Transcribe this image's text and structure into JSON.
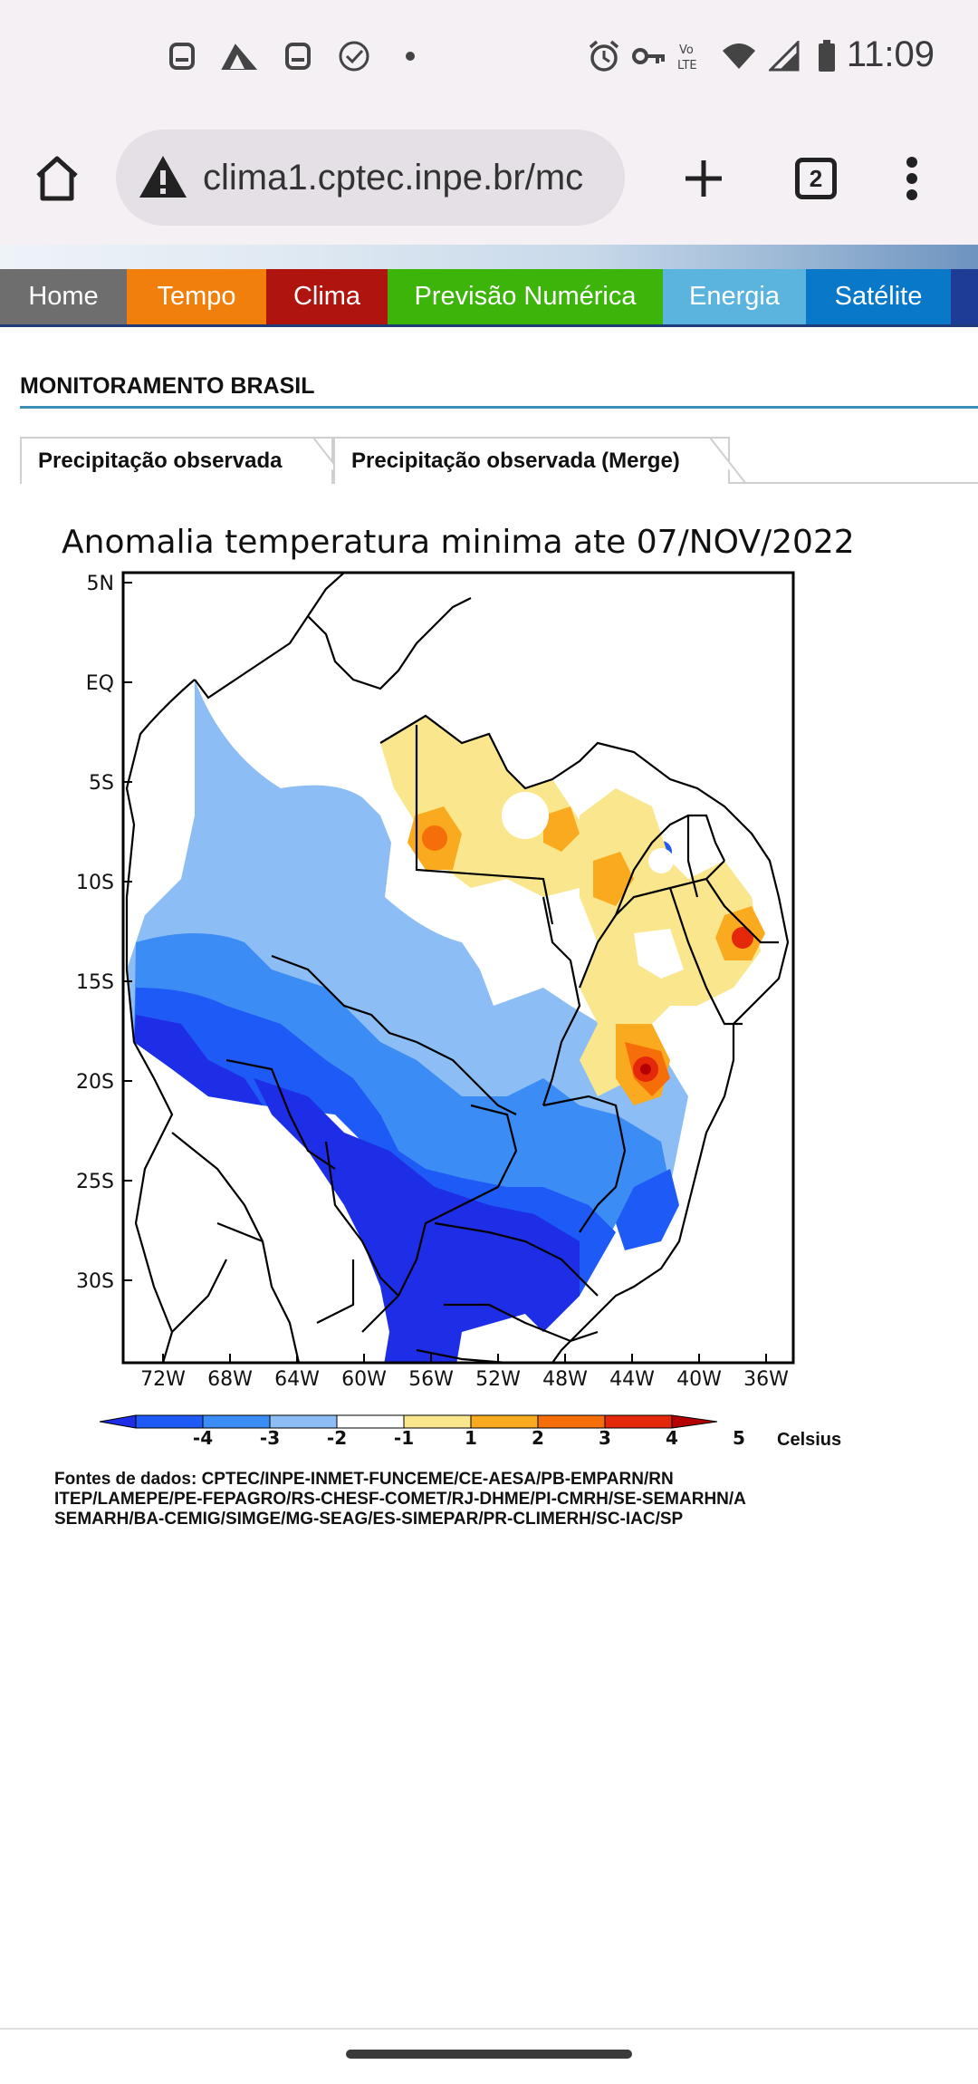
{
  "status_bar": {
    "time": "11:09",
    "left_icons": [
      "notification-icon",
      "app-icon",
      "notification-icon",
      "check-circle-icon",
      "dot-icon"
    ],
    "right_icons": [
      "alarm-icon",
      "key-icon",
      "volte-icon",
      "wifi-icon",
      "signal-icon",
      "battery-icon"
    ]
  },
  "browser": {
    "url": "clima1.cptec.inpe.br/mc",
    "tab_count": "2"
  },
  "nav": {
    "items": [
      {
        "label": "Home",
        "color": "#6e6e6e"
      },
      {
        "label": "Tempo",
        "color": "#f07f0c"
      },
      {
        "label": "Clima",
        "color": "#b0140f"
      },
      {
        "label": "Previsão Numérica",
        "color": "#3cb40a"
      },
      {
        "label": "Energia",
        "color": "#5ab4de"
      },
      {
        "label": "Satélite",
        "color": "#0a78c8"
      }
    ]
  },
  "page": {
    "section_title": "MONITORAMENTO BRASIL",
    "tabs": [
      {
        "label": "Precipitação observada"
      },
      {
        "label": "Precipitação observada (Merge)"
      }
    ]
  },
  "figure": {
    "title": "Anomalia temperatura minima ate 07/NOV/2022",
    "y_ticks": [
      "5N",
      "EQ",
      "5S",
      "10S",
      "15S",
      "20S",
      "25S",
      "30S"
    ],
    "x_ticks": [
      "72W",
      "68W",
      "64W",
      "60W",
      "56W",
      "52W",
      "48W",
      "44W",
      "40W",
      "36W"
    ],
    "colorbar": {
      "labels": [
        "-4",
        "-3",
        "-2",
        "-1",
        "1",
        "2",
        "3",
        "4",
        "5"
      ],
      "colors": [
        "#1e2de6",
        "#1e5af5",
        "#3c8cf5",
        "#8cbef5",
        "#ffffff",
        "#fae68c",
        "#faaa1e",
        "#f56e0a",
        "#e6280a",
        "#b40000"
      ],
      "unit": "Celsius"
    },
    "source_lines": [
      "Fontes de dados: CPTEC/INPE-INMET-FUNCEME/CE-AESA/PB-EMPARN/RN",
      "ITEP/LAMEPE/PE-FEPAGRO/RS-CHESF-COMET/RJ-DHME/PI-CMRH/SE-SEMARHN/A",
      "SEMARH/BA-CEMIG/SIMGE/MG-SEAG/ES-SIMEPAR/PR-CLIMERH/SC-IAC/SP"
    ]
  }
}
